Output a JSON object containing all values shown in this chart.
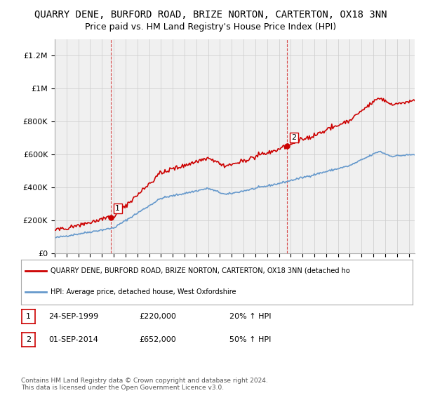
{
  "title": "QUARRY DENE, BURFORD ROAD, BRIZE NORTON, CARTERTON, OX18 3NN",
  "subtitle": "Price paid vs. HM Land Registry's House Price Index (HPI)",
  "ylabel_ticks": [
    "£0",
    "£200K",
    "£400K",
    "£600K",
    "£800K",
    "£1M",
    "£1.2M"
  ],
  "ytick_values": [
    0,
    200000,
    400000,
    600000,
    800000,
    1000000,
    1200000
  ],
  "ylim": [
    0,
    1300000
  ],
  "xlim_start": 1995.0,
  "xlim_end": 2025.5,
  "red_color": "#cc0000",
  "blue_color": "#6699cc",
  "sale1_x": 1999.73,
  "sale1_y": 220000,
  "sale1_label": "1",
  "sale2_x": 2014.67,
  "sale2_y": 652000,
  "sale2_label": "2",
  "vline1_x": 1999.73,
  "vline2_x": 2014.67,
  "legend_line1": "QUARRY DENE, BURFORD ROAD, BRIZE NORTON, CARTERTON, OX18 3NN (detached ho",
  "legend_line2": "HPI: Average price, detached house, West Oxfordshire",
  "table_row1": [
    "1",
    "24-SEP-1999",
    "£220,000",
    "20% ↑ HPI"
  ],
  "table_row2": [
    "2",
    "01-SEP-2014",
    "£652,000",
    "50% ↑ HPI"
  ],
  "footer": "Contains HM Land Registry data © Crown copyright and database right 2024.\nThis data is licensed under the Open Government Licence v3.0.",
  "background_color": "#ffffff",
  "plot_bg_color": "#f0f0f0",
  "grid_color": "#cccccc",
  "title_fontsize": 10,
  "subtitle_fontsize": 9
}
